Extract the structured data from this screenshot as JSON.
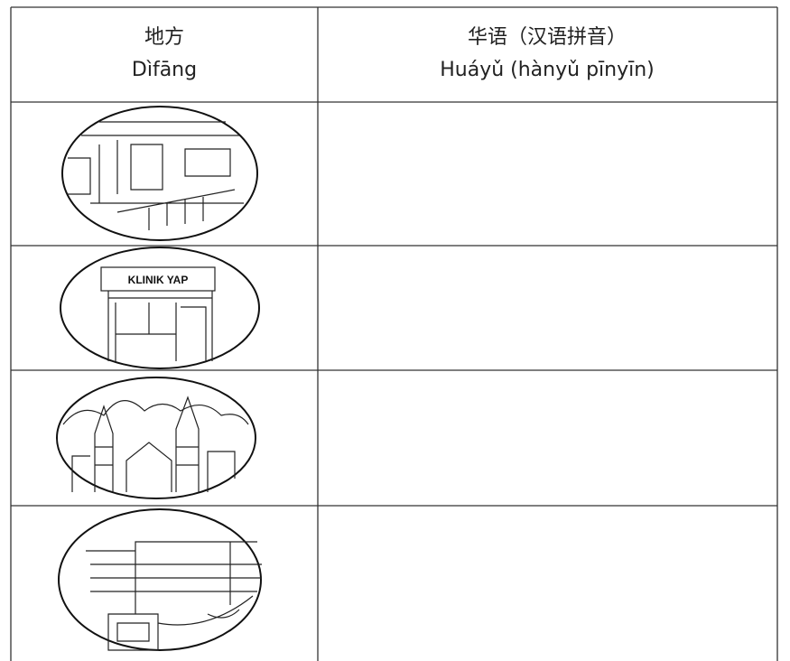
{
  "header": {
    "columns": [
      {
        "chinese": "地方",
        "pinyin": "Dìfāng"
      },
      {
        "chinese": "华语（汉语拼音）",
        "pinyin": "Huáyǔ (hànyǔ pīnyīn)"
      }
    ]
  },
  "clinic_sign": "KLINIK YAP"
}
